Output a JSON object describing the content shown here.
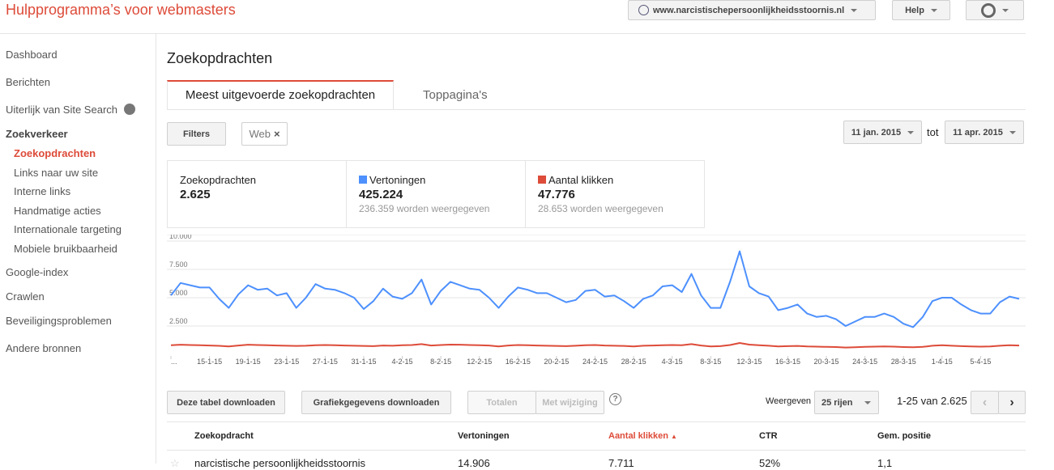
{
  "header": {
    "title": "Hulpprogramma’s voor webmasters",
    "site": "www.narcistischepersoonlijkheidsstoornis.nl",
    "help": "Help"
  },
  "nav": {
    "items": [
      "Dashboard",
      "Berichten",
      "Uiterlijk van Site Search",
      "Zoekverkeer"
    ],
    "sub_items": [
      "Zoekopdrachten",
      "Links naar uw site",
      "Interne links",
      "Handmatige acties",
      "Internationale targeting",
      "Mobiele bruikbaarheid"
    ],
    "more_items": [
      "Google-index",
      "Crawlen",
      "Beveiligingsproblemen",
      "Andere bronnen"
    ]
  },
  "page": {
    "title": "Zoekopdrachten",
    "tabs": [
      "Meest uitgevoerde zoekopdrachten",
      "Toppagina's"
    ],
    "filters": "Filters",
    "filter_tag": "Web",
    "date_from": "11 jan. 2015",
    "date_sep": "tot",
    "date_to": "11 apr. 2015"
  },
  "stats": [
    {
      "label": "Zoekopdrachten",
      "value": "2.625"
    },
    {
      "label": "Vertoningen",
      "value": "425.224",
      "sub": "236.359 worden weergegeven"
    },
    {
      "label": "Aantal klikken",
      "value": "47.776",
      "sub": "28.653 worden weergegeven"
    }
  ],
  "chart_data": {
    "type": "line",
    "ylim": [
      0,
      10000
    ],
    "yticks": [
      {
        "value": 2500,
        "label": "2.500"
      },
      {
        "value": 5000,
        "label": "5.000"
      },
      {
        "value": 7500,
        "label": "7.500"
      },
      {
        "value": 10000,
        "label": "10.000"
      }
    ],
    "grid": true,
    "categories": [
      "...",
      null,
      null,
      null,
      "15-1-15",
      null,
      null,
      null,
      "19-1-15",
      null,
      null,
      null,
      "23-1-15",
      null,
      null,
      null,
      "27-1-15",
      null,
      null,
      null,
      "31-1-15",
      null,
      null,
      null,
      "4-2-15",
      null,
      null,
      null,
      "8-2-15",
      null,
      null,
      null,
      "12-2-15",
      null,
      null,
      null,
      "16-2-15",
      null,
      null,
      null,
      "20-2-15",
      null,
      null,
      null,
      "24-2-15",
      null,
      null,
      null,
      "28-2-15",
      null,
      null,
      null,
      "4-3-15",
      null,
      null,
      null,
      "8-3-15",
      null,
      null,
      null,
      "12-3-15",
      null,
      null,
      null,
      "16-3-15",
      null,
      null,
      null,
      "20-3-15",
      null,
      null,
      null,
      "24-3-15",
      null,
      null,
      null,
      "28-3-15",
      null,
      null,
      null,
      "1-4-15",
      null,
      null,
      null,
      "5-4-15",
      null,
      null,
      null,
      null
    ],
    "series": [
      {
        "name": "Vertoningen",
        "color": "#4d90fe",
        "values": [
          5200,
          6300,
          6100,
          5900,
          5900,
          4900,
          4100,
          5300,
          6100,
          5700,
          5800,
          5200,
          5400,
          4100,
          5000,
          6200,
          5800,
          5700,
          5400,
          5000,
          4000,
          4700,
          5800,
          5100,
          4900,
          5400,
          6600,
          4400,
          5600,
          6400,
          6100,
          5800,
          5700,
          5000,
          4100,
          5100,
          5900,
          5700,
          5400,
          5400,
          5000,
          4600,
          4800,
          5600,
          5700,
          5100,
          5200,
          4700,
          4100,
          4900,
          5200,
          6000,
          6100,
          5500,
          7100,
          5200,
          4100,
          4100,
          6400,
          9100,
          6000,
          5400,
          5100,
          3900,
          4100,
          4400,
          3600,
          3300,
          3400,
          3100,
          2500,
          2900,
          3300,
          3300,
          3600,
          3300,
          2700,
          2400,
          3300,
          4700,
          5000,
          5000,
          4400,
          3900,
          3600,
          3600,
          4600,
          5100,
          4900
        ]
      },
      {
        "name": "Aantal klikken",
        "color": "#dd4b39",
        "values": [
          800,
          850,
          820,
          800,
          780,
          750,
          700,
          780,
          850,
          820,
          800,
          780,
          760,
          740,
          760,
          800,
          820,
          800,
          780,
          760,
          740,
          720,
          780,
          760,
          800,
          820,
          900,
          780,
          820,
          860,
          850,
          820,
          800,
          780,
          700,
          780,
          820,
          800,
          780,
          760,
          740,
          720,
          760,
          800,
          820,
          780,
          760,
          740,
          700,
          760,
          780,
          800,
          820,
          800,
          900,
          780,
          700,
          720,
          820,
          1000,
          860,
          800,
          760,
          700,
          720,
          740,
          700,
          680,
          660,
          640,
          600,
          620,
          660,
          680,
          700,
          680,
          640,
          620,
          660,
          760,
          800,
          760,
          720,
          700,
          680,
          700,
          760,
          800,
          780
        ]
      }
    ]
  },
  "toolbar": {
    "download_table": "Deze tabel downloaden",
    "download_chart": "Grafiekgegevens downloaden",
    "totals": "Totalen",
    "changes": "Met wijziging",
    "help": "?",
    "show": "Weergeven",
    "rows": "25 rijen",
    "range": "1-25 van 2.625"
  },
  "table": {
    "columns": [
      "Zoekopdracht",
      "Vertoningen",
      "Aantal klikken",
      "CTR",
      "Gem. positie"
    ],
    "rows": [
      [
        "narcistische persoonlijkheidsstoornis",
        "14.906",
        "7.711",
        "52%",
        "1,1"
      ]
    ]
  }
}
